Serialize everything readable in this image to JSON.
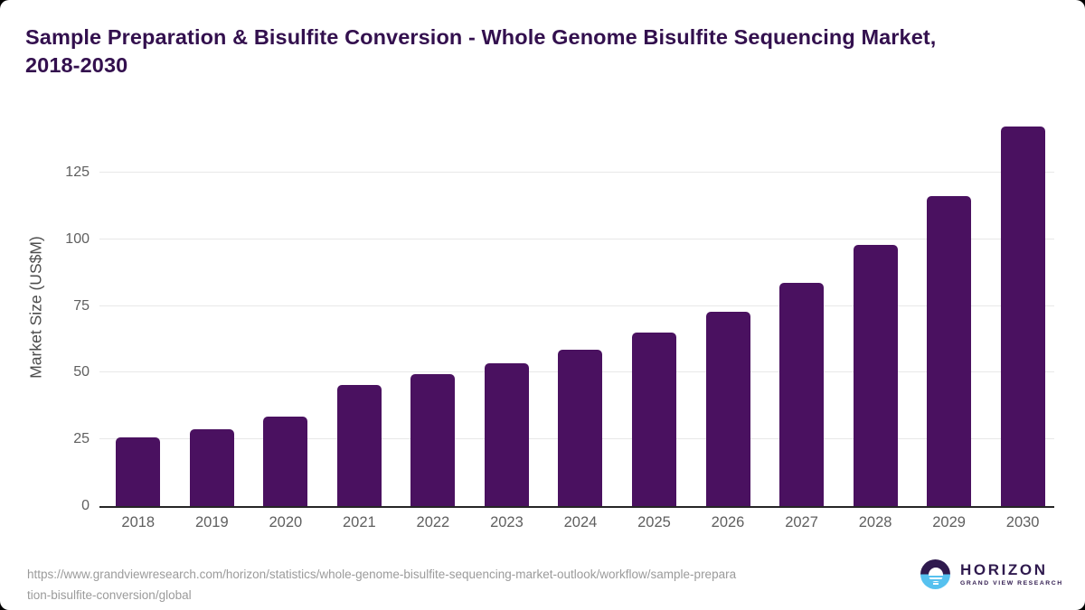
{
  "title": {
    "line1": "Sample Preparation & Bisulfite Conversion - Whole Genome Bisulfite Sequencing Market,",
    "line2": "2018-2030"
  },
  "chart_data": {
    "type": "bar",
    "title": "Sample Preparation & Bisulfite Conversion - Whole Genome Bisulfite Sequencing Market, 2018-2030",
    "categories": [
      "2018",
      "2019",
      "2020",
      "2021",
      "2022",
      "2023",
      "2024",
      "2025",
      "2026",
      "2027",
      "2028",
      "2029",
      "2030"
    ],
    "values": [
      25.6,
      28.7,
      33.6,
      45.4,
      49.4,
      53.5,
      58.6,
      65.1,
      73.0,
      83.7,
      97.9,
      116.2,
      142.2
    ],
    "xlabel": "",
    "ylabel": "Market Size (US$M)",
    "ylim": [
      0,
      146
    ],
    "yticks": [
      0,
      25,
      50,
      75,
      100,
      125
    ],
    "grid": true,
    "legend": "none",
    "bar_color": "#4a1160"
  },
  "footer": {
    "source_url_line1": "https://www.grandviewresearch.com/horizon/statistics/whole-genome-bisulfite-sequencing-market-outlook/workflow/sample-prepara",
    "source_url_line2": "tion-bisulfite-conversion/global",
    "logo": {
      "name": "HORIZON",
      "tagline": "GRAND VIEW RESEARCH"
    }
  },
  "colors": {
    "title_text": "#33104e",
    "bar": "#4a1160",
    "axis_labels": "#5f5f5f",
    "gridline": "#e8e8e8",
    "axis_line": "#262626",
    "source_text": "#9b9b9b",
    "logo_purple": "#2f1a4e",
    "logo_blue": "#56c1ef"
  }
}
